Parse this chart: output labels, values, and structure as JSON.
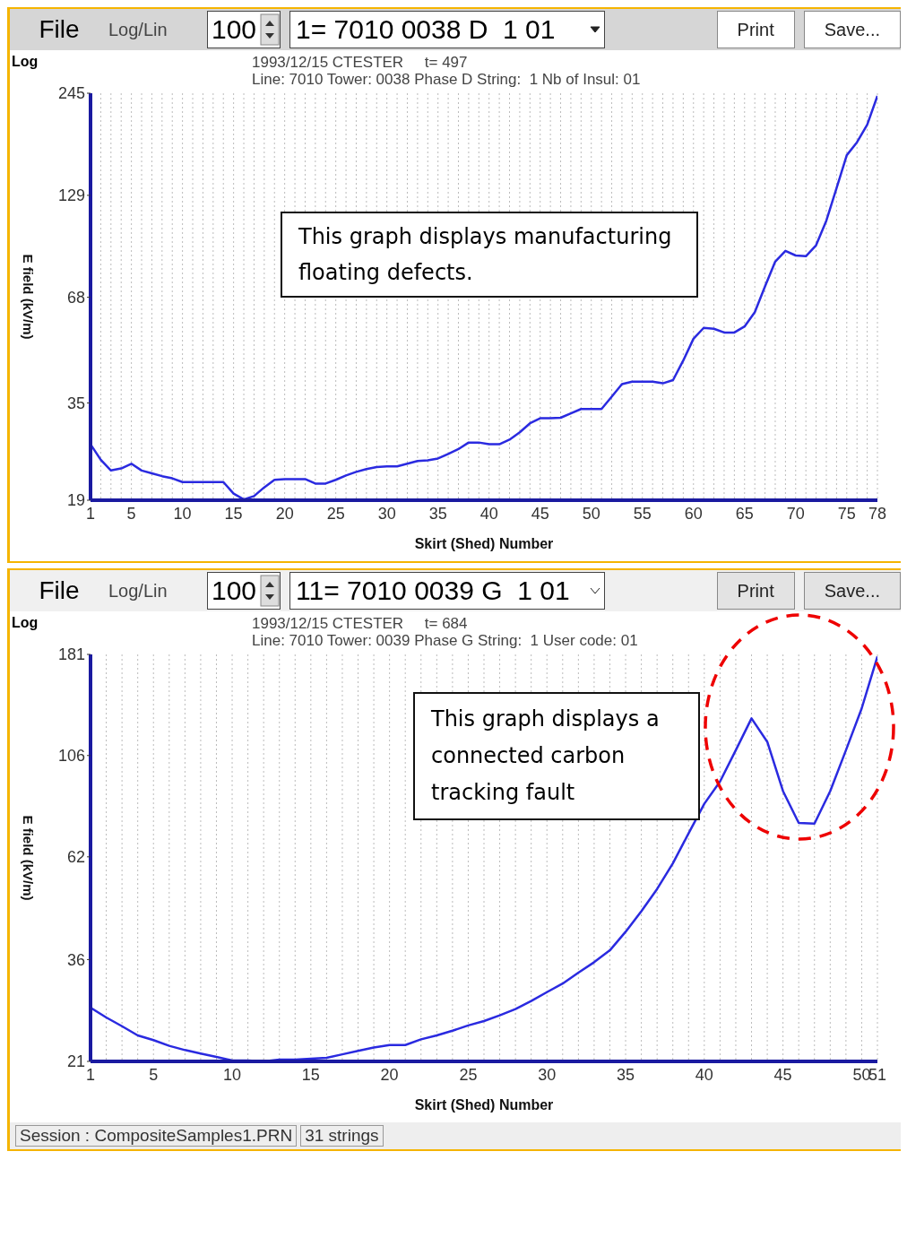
{
  "chart_data": [
    {
      "type": "line",
      "title": "1993/12/15 CTESTER     t= 497",
      "subtitle": "Line: 7010 Tower: 0038 Phase D String:  1 Nb of Insul: 01",
      "xlabel": "Skirt (Shed) Number",
      "ylabel": "E field (kV/m)",
      "log": "y",
      "grid": "x",
      "marker": "none",
      "line_style": "solid",
      "annotations": [
        "File",
        "Log/Lin",
        "100",
        "1= 7010 0038 D  1 01",
        "Print",
        "Save...",
        "Log",
        "This graph displays manufacturing floating defects."
      ],
      "xlim": [
        1,
        78
      ],
      "ylim": [
        19,
        245
      ],
      "yticks": [
        19,
        35,
        68,
        129,
        245
      ],
      "xticks": [
        1,
        {
          "value": 2,
          "label": null
        },
        {
          "value": 3,
          "label": null
        },
        {
          "value": 4,
          "label": null
        },
        5,
        {
          "value": 6,
          "label": null
        },
        {
          "value": 7,
          "label": null
        },
        {
          "value": 8,
          "label": null
        },
        {
          "value": 9,
          "label": null
        },
        10,
        {
          "value": 11,
          "label": null
        },
        {
          "value": 12,
          "label": null
        },
        {
          "value": 13,
          "label": null
        },
        {
          "value": 14,
          "label": null
        },
        15,
        {
          "value": 16,
          "label": null
        },
        {
          "value": 17,
          "label": null
        },
        {
          "value": 18,
          "label": null
        },
        {
          "value": 19,
          "label": null
        },
        20,
        {
          "value": 21,
          "label": null
        },
        {
          "value": 22,
          "label": null
        },
        {
          "value": 23,
          "label": null
        },
        {
          "value": 24,
          "label": null
        },
        25,
        {
          "value": 26,
          "label": null
        },
        {
          "value": 27,
          "label": null
        },
        {
          "value": 28,
          "label": null
        },
        {
          "value": 29,
          "label": null
        },
        30,
        {
          "value": 31,
          "label": null
        },
        {
          "value": 32,
          "label": null
        },
        {
          "value": 33,
          "label": null
        },
        {
          "value": 34,
          "label": null
        },
        35,
        {
          "value": 36,
          "label": null
        },
        {
          "value": 37,
          "label": null
        },
        {
          "value": 38,
          "label": null
        },
        {
          "value": 39,
          "label": null
        },
        40,
        {
          "value": 41,
          "label": null
        },
        {
          "value": 42,
          "label": null
        },
        {
          "value": 43,
          "label": null
        },
        {
          "value": 44,
          "label": null
        },
        45,
        {
          "value": 46,
          "label": null
        },
        {
          "value": 47,
          "label": null
        },
        {
          "value": 48,
          "label": null
        },
        {
          "value": 49,
          "label": null
        },
        50,
        {
          "value": 51,
          "label": null
        },
        {
          "value": 52,
          "label": null
        },
        {
          "value": 53,
          "label": null
        },
        {
          "value": 54,
          "label": null
        },
        55,
        {
          "value": 56,
          "label": null
        },
        {
          "value": 57,
          "label": null
        },
        {
          "value": 58,
          "label": null
        },
        {
          "value": 59,
          "label": null
        },
        60,
        {
          "value": 61,
          "label": null
        },
        {
          "value": 62,
          "label": null
        },
        {
          "value": 63,
          "label": null
        },
        {
          "value": 64,
          "label": null
        },
        65,
        {
          "value": 66,
          "label": null
        },
        {
          "value": 67,
          "label": null
        },
        {
          "value": 68,
          "label": null
        },
        {
          "value": 69,
          "label": null
        },
        70,
        {
          "value": 71,
          "label": null
        },
        {
          "value": 72,
          "label": null
        },
        {
          "value": 73,
          "label": null
        },
        {
          "value": 74,
          "label": null
        },
        75,
        {
          "value": 76,
          "label": null
        },
        {
          "value": 77,
          "label": null
        },
        78
      ],
      "x": [
        1,
        2,
        3,
        4,
        5,
        6,
        7,
        8,
        9,
        10,
        11,
        12,
        13,
        14,
        15,
        16,
        17,
        18,
        19,
        20,
        21,
        22,
        23,
        24,
        25,
        26,
        27,
        28,
        29,
        30,
        31,
        32,
        33,
        34,
        35,
        36,
        37,
        38,
        39,
        40,
        41,
        42,
        43,
        44,
        45,
        46,
        47,
        48,
        49,
        50,
        51,
        52,
        53,
        54,
        55,
        56,
        57,
        58,
        59,
        60,
        61,
        62,
        63,
        64,
        65,
        66,
        67,
        68,
        69,
        70,
        71,
        72,
        73,
        74,
        75,
        76,
        77,
        78
      ],
      "series": [
        {
          "color": "#2a2ae0",
          "values": [
            27.0,
            24.5,
            22.9,
            23.2,
            23.9,
            22.9,
            22.5,
            22.1,
            21.8,
            21.3,
            21.3,
            21.3,
            21.3,
            21.3,
            19.8,
            19.1,
            19.5,
            20.6,
            21.6,
            21.7,
            21.7,
            21.7,
            21.1,
            21.1,
            21.6,
            22.2,
            22.7,
            23.1,
            23.4,
            23.5,
            23.5,
            23.9,
            24.3,
            24.4,
            24.7,
            25.4,
            26.2,
            27.3,
            27.3,
            27.0,
            27.0,
            27.8,
            29.1,
            30.8,
            31.8,
            31.8,
            31.9,
            32.8,
            33.7,
            33.7,
            33.7,
            36.4,
            39.4,
            40.0,
            40.0,
            40.0,
            39.6,
            40.4,
            45.7,
            52.4,
            56.1,
            55.8,
            54.5,
            54.5,
            56.6,
            61.9,
            72.8,
            85.1,
            91.0,
            88.4,
            88.0,
            94.3,
            110,
            135,
            166,
            180,
            201,
            241
          ]
        }
      ]
    },
    {
      "type": "line",
      "title": "1993/12/15 CTESTER     t= 684",
      "subtitle": "Line: 7010 Tower: 0039 Phase G String:  1 User code: 01",
      "xlabel": "Skirt (Shed) Number",
      "ylabel": "E field (kV/m)",
      "log": "y",
      "grid": "x",
      "marker": "none",
      "line_style": "solid",
      "annotations": [
        "File",
        "Log/Lin",
        "100",
        "11= 7010 0039 G  1 01",
        "Print",
        "Save...",
        "Log",
        "This graph displays a connected carbon tracking fault",
        "Session : CompositeSamples1.PRN",
        "31 strings"
      ],
      "xlim": [
        1,
        51
      ],
      "ylim": [
        21,
        181
      ],
      "yticks": [
        21,
        36,
        62,
        106,
        181
      ],
      "xticks": [
        1,
        {
          "value": 2,
          "label": null
        },
        {
          "value": 3,
          "label": null
        },
        {
          "value": 4,
          "label": null
        },
        5,
        {
          "value": 6,
          "label": null
        },
        {
          "value": 7,
          "label": null
        },
        {
          "value": 8,
          "label": null
        },
        {
          "value": 9,
          "label": null
        },
        10,
        {
          "value": 11,
          "label": null
        },
        {
          "value": 12,
          "label": null
        },
        {
          "value": 13,
          "label": null
        },
        {
          "value": 14,
          "label": null
        },
        15,
        {
          "value": 16,
          "label": null
        },
        {
          "value": 17,
          "label": null
        },
        {
          "value": 18,
          "label": null
        },
        {
          "value": 19,
          "label": null
        },
        20,
        {
          "value": 21,
          "label": null
        },
        {
          "value": 22,
          "label": null
        },
        {
          "value": 23,
          "label": null
        },
        {
          "value": 24,
          "label": null
        },
        25,
        {
          "value": 26,
          "label": null
        },
        {
          "value": 27,
          "label": null
        },
        {
          "value": 28,
          "label": null
        },
        {
          "value": 29,
          "label": null
        },
        30,
        {
          "value": 31,
          "label": null
        },
        {
          "value": 32,
          "label": null
        },
        {
          "value": 33,
          "label": null
        },
        {
          "value": 34,
          "label": null
        },
        35,
        {
          "value": 36,
          "label": null
        },
        {
          "value": 37,
          "label": null
        },
        {
          "value": 38,
          "label": null
        },
        {
          "value": 39,
          "label": null
        },
        40,
        {
          "value": 41,
          "label": null
        },
        {
          "value": 42,
          "label": null
        },
        {
          "value": 43,
          "label": null
        },
        {
          "value": 44,
          "label": null
        },
        45,
        {
          "value": 46,
          "label": null
        },
        {
          "value": 47,
          "label": null
        },
        {
          "value": 48,
          "label": null
        },
        {
          "value": 49,
          "label": null
        },
        50,
        51
      ],
      "x": [
        1,
        2,
        3,
        4,
        5,
        6,
        7,
        8,
        9,
        10,
        11,
        12,
        13,
        14,
        15,
        16,
        17,
        18,
        19,
        20,
        21,
        22,
        23,
        24,
        25,
        26,
        27,
        28,
        29,
        30,
        31,
        32,
        33,
        34,
        35,
        36,
        37,
        38,
        39,
        40,
        41,
        42,
        43,
        44,
        45,
        46,
        47,
        48,
        49,
        50,
        51
      ],
      "series": [
        {
          "color": "#2a2ae0",
          "values": [
            27.9,
            26.5,
            25.3,
            24.1,
            23.5,
            22.8,
            22.3,
            21.9,
            21.5,
            21.1,
            21.1,
            21.0,
            21.2,
            21.2,
            21.3,
            21.4,
            21.8,
            22.2,
            22.6,
            22.9,
            22.9,
            23.6,
            24.1,
            24.7,
            25.4,
            26.0,
            26.8,
            27.7,
            28.9,
            30.3,
            31.7,
            33.6,
            35.5,
            37.8,
            41.7,
            46.5,
            52.3,
            59.9,
            70.2,
            82.1,
            92.4,
            109,
            129,
            114,
            87.8,
            74.2,
            73.9,
            87.8,
            109,
            136,
            179
          ]
        }
      ]
    }
  ]
}
